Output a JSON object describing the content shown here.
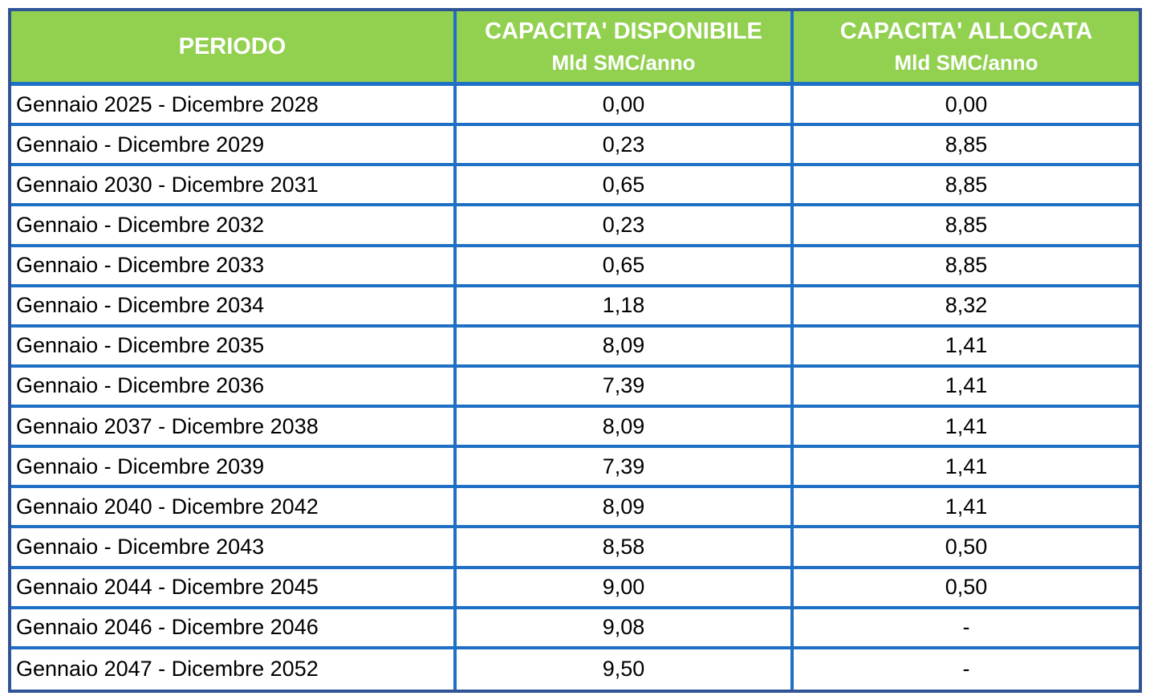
{
  "table": {
    "headers": {
      "periodo": "PERIODO",
      "disponibile_title": "CAPACITA' DISPONIBILE",
      "disponibile_unit": "Mld SMC/anno",
      "allocata_title": "CAPACITA' ALLOCATA",
      "allocata_unit": "Mld SMC/anno"
    },
    "rows": [
      {
        "periodo": "Gennaio 2025 - Dicembre 2028",
        "disponibile": "0,00",
        "allocata": "0,00"
      },
      {
        "periodo": "Gennaio - Dicembre 2029",
        "disponibile": "0,23",
        "allocata": "8,85"
      },
      {
        "periodo": "Gennaio 2030 - Dicembre 2031",
        "disponibile": "0,65",
        "allocata": "8,85"
      },
      {
        "periodo": "Gennaio - Dicembre 2032",
        "disponibile": "0,23",
        "allocata": "8,85"
      },
      {
        "periodo": "Gennaio - Dicembre 2033",
        "disponibile": "0,65",
        "allocata": "8,85"
      },
      {
        "periodo": "Gennaio - Dicembre 2034",
        "disponibile": "1,18",
        "allocata": "8,32"
      },
      {
        "periodo": "Gennaio - Dicembre 2035",
        "disponibile": "8,09",
        "allocata": "1,41"
      },
      {
        "periodo": "Gennaio - Dicembre 2036",
        "disponibile": "7,39",
        "allocata": "1,41"
      },
      {
        "periodo": "Gennaio 2037 - Dicembre 2038",
        "disponibile": "8,09",
        "allocata": "1,41"
      },
      {
        "periodo": "Gennaio - Dicembre 2039",
        "disponibile": "7,39",
        "allocata": "1,41"
      },
      {
        "periodo": "Gennaio 2040 - Dicembre 2042",
        "disponibile": "8,09",
        "allocata": "1,41"
      },
      {
        "periodo": "Gennaio - Dicembre 2043",
        "disponibile": "8,58",
        "allocata": "0,50"
      },
      {
        "periodo": "Gennaio 2044 - Dicembre 2045",
        "disponibile": "9,00",
        "allocata": "0,50"
      },
      {
        "periodo": "Gennaio 2046 - Dicembre 2046",
        "disponibile": "9,08",
        "allocata": "-"
      },
      {
        "periodo": "Gennaio 2047 - Dicembre 2052",
        "disponibile": "9,50",
        "allocata": "-"
      }
    ]
  },
  "colors": {
    "header_bg": "#92d050",
    "header_text": "#ffffff",
    "grid_lines": "#1f6fc4",
    "outer_border": "#2f5597"
  }
}
